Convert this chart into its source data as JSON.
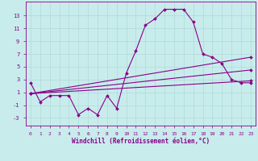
{
  "xlabel": "Windchill (Refroidissement éolien,°C)",
  "background_color": "#c8ecec",
  "grid_color": "#b0d8d8",
  "line_color": "#880088",
  "x_values": [
    0,
    1,
    2,
    3,
    4,
    5,
    6,
    7,
    8,
    9,
    10,
    11,
    12,
    13,
    14,
    15,
    16,
    17,
    18,
    19,
    20,
    21,
    22,
    23
  ],
  "y_main": [
    2.5,
    -0.5,
    0.5,
    0.5,
    0.5,
    -2.5,
    -1.5,
    -2.5,
    0.5,
    -1.5,
    4.0,
    7.5,
    11.5,
    12.5,
    14.0,
    14.0,
    14.0,
    12.0,
    7.0,
    6.5,
    5.5,
    3.0,
    2.5,
    2.5
  ],
  "trend1_x": [
    0,
    23
  ],
  "trend1_y": [
    0.8,
    2.8
  ],
  "trend2_x": [
    0,
    23
  ],
  "trend2_y": [
    0.8,
    4.5
  ],
  "trend3_x": [
    0,
    23
  ],
  "trend3_y": [
    0.8,
    6.5
  ],
  "xlim": [
    -0.5,
    23.5
  ],
  "ylim": [
    -4.2,
    15.2
  ],
  "yticks": [
    -3,
    -1,
    1,
    3,
    5,
    7,
    9,
    11,
    13
  ],
  "xticks": [
    0,
    1,
    2,
    3,
    4,
    5,
    6,
    7,
    8,
    9,
    10,
    11,
    12,
    13,
    14,
    15,
    16,
    17,
    18,
    19,
    20,
    21,
    22,
    23
  ],
  "marker_size": 2.0,
  "line_width": 0.8,
  "tick_fontsize": 4.5,
  "xlabel_fontsize": 5.5
}
